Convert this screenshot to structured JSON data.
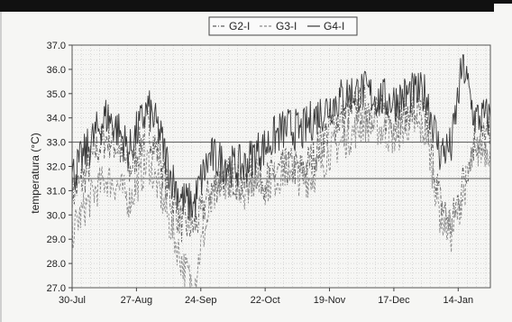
{
  "chart_data": {
    "type": "line",
    "title": "",
    "xlabel": "",
    "ylabel": "temperatura (°C)",
    "ylim": [
      27.0,
      37.0
    ],
    "y_ticks": [
      "37.0",
      "36.0",
      "35.0",
      "34.0",
      "33.0",
      "32.0",
      "31.0",
      "30.0",
      "29.0",
      "28.0",
      "27.0"
    ],
    "x_ticks": [
      "30-Jul",
      "27-Aug",
      "24-Sep",
      "22-Oct",
      "19-Nov",
      "17-Dec",
      "14-Jan"
    ],
    "x_range_days": [
      0,
      182
    ],
    "grid": true,
    "legend": {
      "placement": "top-center",
      "entries": [
        "G2-I",
        "G3-I",
        "G4-I"
      ]
    },
    "reference_lines": [
      {
        "y": 33.0
      },
      {
        "y": 31.5
      }
    ],
    "series": [
      {
        "name": "G2-I",
        "style": "dash-dot",
        "x": [
          0,
          5,
          10,
          15,
          20,
          25,
          28,
          33,
          38,
          43,
          48,
          53,
          56,
          60,
          65,
          70,
          75,
          80,
          84,
          90,
          95,
          100,
          105,
          112,
          120,
          127,
          133,
          140,
          147,
          154,
          160,
          165,
          170,
          175,
          182
        ],
        "y": [
          30.8,
          31.5,
          32.6,
          33.2,
          32.8,
          31.8,
          32.5,
          33.6,
          32.4,
          30.6,
          29.6,
          29.5,
          30.0,
          31.0,
          31.5,
          31.6,
          31.2,
          31.8,
          31.4,
          31.8,
          32.0,
          31.8,
          32.4,
          33.6,
          34.2,
          34.6,
          34.3,
          33.9,
          34.3,
          34.0,
          30.6,
          29.6,
          31.4,
          33.0,
          33.3
        ]
      },
      {
        "name": "G3-I",
        "style": "dashed",
        "x": [
          0,
          5,
          10,
          15,
          20,
          25,
          28,
          33,
          38,
          43,
          48,
          53,
          56,
          60,
          65,
          70,
          75,
          80,
          84,
          90,
          95,
          100,
          105,
          112,
          120,
          127,
          133,
          140,
          147,
          154,
          160,
          165,
          170,
          175,
          182
        ],
        "y": [
          29.3,
          30.2,
          31.0,
          31.5,
          31.2,
          30.6,
          31.2,
          32.2,
          31.0,
          29.5,
          28.0,
          27.0,
          28.7,
          30.2,
          31.4,
          31.5,
          31.0,
          31.6,
          31.2,
          31.6,
          32.0,
          31.4,
          31.6,
          32.6,
          33.2,
          33.8,
          33.6,
          33.2,
          33.8,
          33.4,
          30.0,
          29.2,
          30.8,
          32.6,
          32.8
        ]
      },
      {
        "name": "G4-I",
        "style": "solid",
        "x": [
          0,
          5,
          10,
          15,
          20,
          25,
          28,
          33,
          38,
          43,
          48,
          53,
          56,
          60,
          65,
          70,
          75,
          80,
          84,
          90,
          95,
          100,
          105,
          112,
          120,
          127,
          133,
          140,
          147,
          154,
          160,
          165,
          170,
          175,
          182
        ],
        "y": [
          31.6,
          32.4,
          33.3,
          34.1,
          33.5,
          32.6,
          33.4,
          34.4,
          33.4,
          31.6,
          30.6,
          30.4,
          31.4,
          32.4,
          32.2,
          32.0,
          32.0,
          32.6,
          32.8,
          33.4,
          33.6,
          33.4,
          34.0,
          34.5,
          35.0,
          35.1,
          34.8,
          34.7,
          35.0,
          35.0,
          32.6,
          32.8,
          36.3,
          34.0,
          34.0
        ]
      }
    ]
  }
}
